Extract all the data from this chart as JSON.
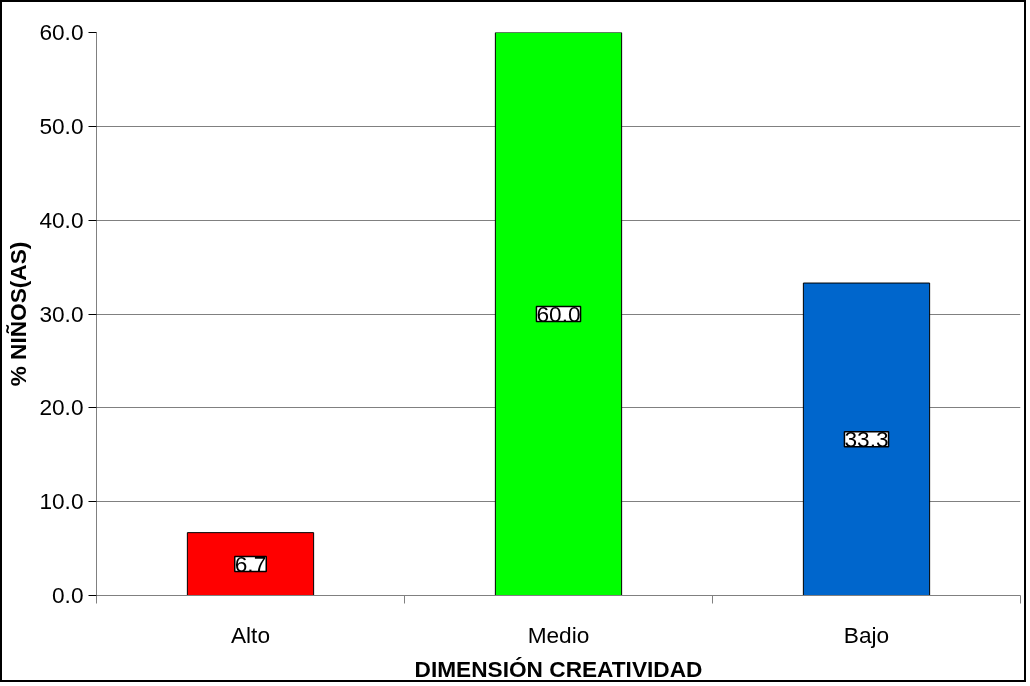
{
  "chart_data": {
    "type": "bar",
    "xlabel": "DIMENSIÓN CREATIVIDAD",
    "ylabel": "% NIÑOS(AS)",
    "categories": [
      "Alto",
      "Medio",
      "Bajo"
    ],
    "values": [
      6.7,
      60.0,
      33.3
    ],
    "colors": [
      "#ff0000",
      "#00ff00",
      "#0066cc"
    ],
    "value_labels": [
      "6.7",
      "60.0",
      "33.3"
    ],
    "ylim": [
      0,
      60
    ],
    "yticks": [
      {
        "value": 0,
        "label": "0.0"
      },
      {
        "value": 10,
        "label": "10.0"
      },
      {
        "value": 20,
        "label": "20.0"
      },
      {
        "value": 30,
        "label": "30.0"
      },
      {
        "value": 40,
        "label": "40.0"
      },
      {
        "value": 50,
        "label": "50.0"
      },
      {
        "value": 60,
        "label": "60.0"
      }
    ],
    "grid": "y"
  }
}
